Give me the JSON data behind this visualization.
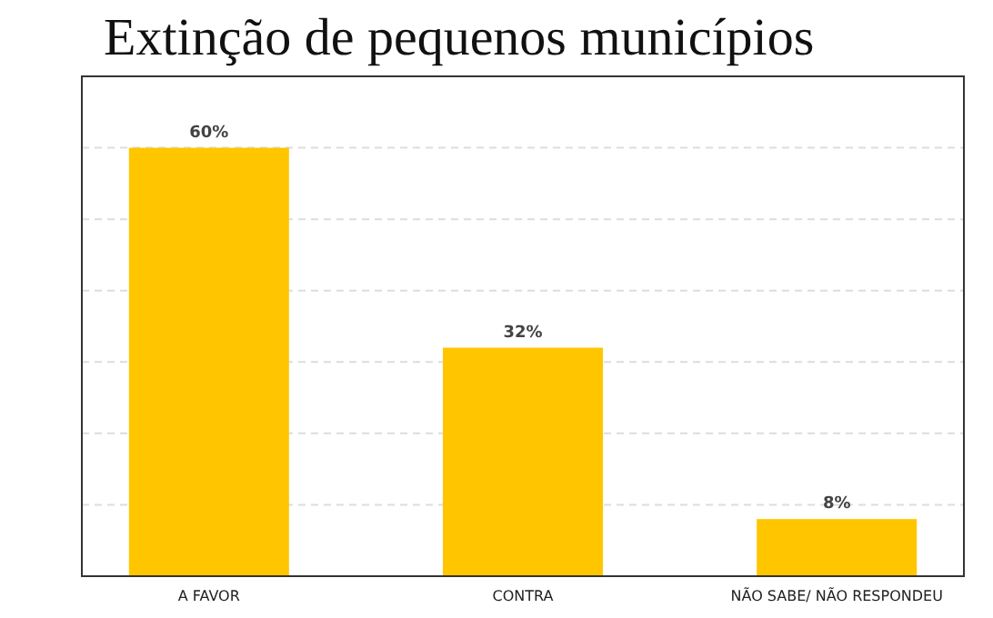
{
  "chart_data": {
    "type": "bar",
    "title": "Extinção de pequenos municípios",
    "categories": [
      "A FAVOR",
      "CONTRA",
      "NÃO SABE/ NÃO RESPONDEU"
    ],
    "values": [
      60,
      32,
      8
    ],
    "value_labels": [
      "60%",
      "32%",
      "8%"
    ],
    "color": "#ffc600",
    "ylim": [
      0,
      70
    ],
    "yticks": [
      {
        "value": 0,
        "label": null
      },
      {
        "value": 10,
        "label": null
      },
      {
        "value": 20,
        "label": null
      },
      {
        "value": 30,
        "label": null
      },
      {
        "value": 40,
        "label": null
      },
      {
        "value": 50,
        "label": null
      },
      {
        "value": 60,
        "label": null
      },
      {
        "value": 70,
        "label": null
      }
    ],
    "grid": "y",
    "tick_labels": "x"
  }
}
